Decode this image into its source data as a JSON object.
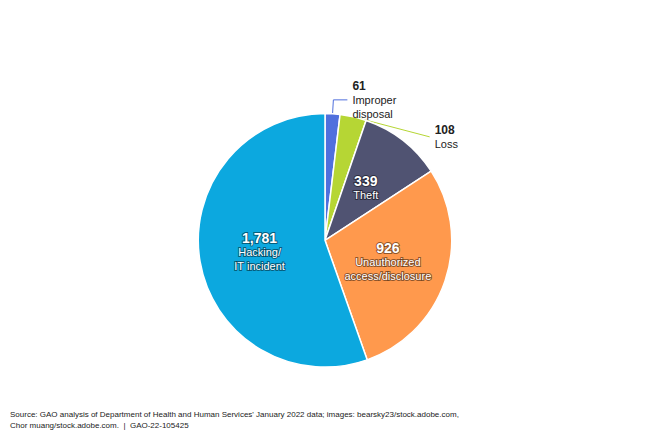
{
  "chart_data": {
    "type": "pie",
    "categories": [
      "Improper\ndisposal",
      "Loss",
      "Theft",
      "Unauthorized\naccess/disclosure",
      "Hacking/\nIT incident"
    ],
    "values": [
      61,
      108,
      339,
      926,
      1781
    ],
    "value_labels": [
      "61",
      "108",
      "339",
      "926",
      "1,781"
    ],
    "data_labels": true,
    "annotations": [
      "Source: GAO analysis of Department of Health and Human Services' January 2022 data; images: bearsky23/stock.adobe.com,\nChor muang/stock.adobe.com.  |  GAO-22-105425"
    ]
  }
}
